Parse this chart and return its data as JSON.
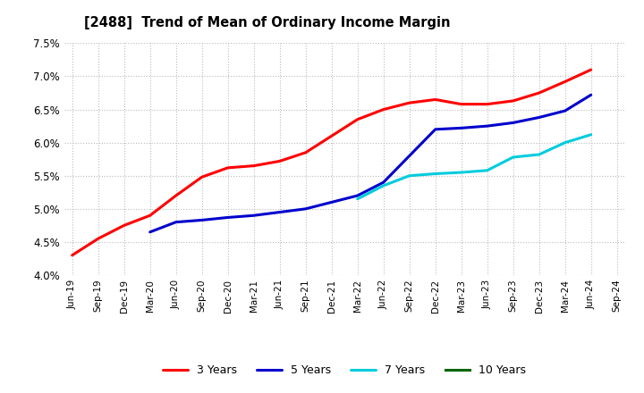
{
  "title": "[2488]  Trend of Mean of Ordinary Income Margin",
  "ylim": [
    0.04,
    0.075
  ],
  "yticks": [
    0.04,
    0.045,
    0.05,
    0.055,
    0.06,
    0.065,
    0.07,
    0.075
  ],
  "background_color": "#ffffff",
  "grid_color": "#bbbbbb",
  "series": {
    "3 Years": {
      "color": "#ff0000",
      "x": [
        "Jun-19",
        "Sep-19",
        "Dec-19",
        "Mar-20",
        "Jun-20",
        "Sep-20",
        "Dec-20",
        "Mar-21",
        "Jun-21",
        "Sep-21",
        "Dec-21",
        "Mar-22",
        "Jun-22",
        "Sep-22",
        "Dec-22",
        "Mar-23",
        "Jun-23",
        "Sep-23",
        "Dec-23",
        "Mar-24",
        "Jun-24"
      ],
      "y": [
        0.043,
        0.0455,
        0.0475,
        0.049,
        0.052,
        0.0548,
        0.0562,
        0.0565,
        0.0572,
        0.0585,
        0.061,
        0.0635,
        0.065,
        0.066,
        0.0665,
        0.0658,
        0.0658,
        0.0663,
        0.0675,
        0.0692,
        0.071
      ]
    },
    "5 Years": {
      "color": "#0000cc",
      "x": [
        "Mar-20",
        "Jun-20",
        "Sep-20",
        "Dec-20",
        "Mar-21",
        "Jun-21",
        "Sep-21",
        "Dec-21",
        "Mar-22",
        "Jun-22",
        "Sep-22",
        "Dec-22",
        "Mar-23",
        "Jun-23",
        "Sep-23",
        "Dec-23",
        "Mar-24",
        "Jun-24"
      ],
      "y": [
        0.0465,
        0.048,
        0.0483,
        0.0487,
        0.049,
        0.0495,
        0.05,
        0.051,
        0.052,
        0.054,
        0.058,
        0.062,
        0.0622,
        0.0625,
        0.063,
        0.0638,
        0.0648,
        0.0672
      ]
    },
    "7 Years": {
      "color": "#00ccdd",
      "x": [
        "Mar-22",
        "Jun-22",
        "Sep-22",
        "Dec-22",
        "Mar-23",
        "Jun-23",
        "Sep-23",
        "Dec-23",
        "Mar-24",
        "Jun-24"
      ],
      "y": [
        0.0515,
        0.0535,
        0.055,
        0.0553,
        0.0555,
        0.0558,
        0.0578,
        0.0582,
        0.06,
        0.0612
      ]
    },
    "10 Years": {
      "color": "#006600",
      "x": [],
      "y": []
    }
  },
  "xtick_labels": [
    "Jun-19",
    "Sep-19",
    "Dec-19",
    "Mar-20",
    "Jun-20",
    "Sep-20",
    "Dec-20",
    "Mar-21",
    "Jun-21",
    "Sep-21",
    "Dec-21",
    "Mar-22",
    "Jun-22",
    "Sep-22",
    "Dec-22",
    "Mar-23",
    "Jun-23",
    "Sep-23",
    "Dec-23",
    "Mar-24",
    "Jun-24",
    "Sep-24"
  ],
  "legend_order": [
    "3 Years",
    "5 Years",
    "7 Years",
    "10 Years"
  ]
}
